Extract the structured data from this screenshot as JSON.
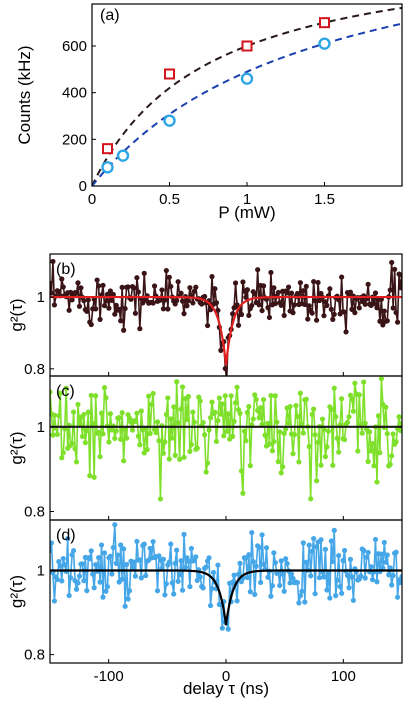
{
  "chart_data": [
    {
      "panel": "(a)",
      "type": "scatter",
      "xlabel": "P (mW)",
      "ylabel": "Counts (kHz)",
      "xlim": [
        0,
        2
      ],
      "ylim": [
        0,
        780
      ],
      "xticks": [
        "0",
        "0.5",
        "1",
        "1.5"
      ],
      "yticks": [
        "0",
        "200",
        "400",
        "600"
      ],
      "series": [
        {
          "color": "#d4141c",
          "marker": "square",
          "x": [
            0.1,
            0.5,
            1.0,
            1.5
          ],
          "y": [
            160,
            480,
            600,
            700
          ]
        },
        {
          "color": "#2ea6e6",
          "marker": "circle",
          "x": [
            0.1,
            0.2,
            0.5,
            1.0,
            1.5
          ],
          "y": [
            80,
            130,
            280,
            460,
            610
          ]
        }
      ],
      "fits": [
        {
          "color": "#2a1a1a",
          "style": "dashed",
          "Imax": 1050,
          "Psat": 0.75
        },
        {
          "color": "#1a3fae",
          "style": "dashed",
          "Imax": 1200,
          "Psat": 1.45
        }
      ]
    },
    {
      "panel": "(b)",
      "type": "line",
      "ylabel": "g²(τ)",
      "xlim": [
        -150,
        150
      ],
      "ylim": [
        0.78,
        1.12
      ],
      "yticks": [
        "0.8",
        "1"
      ],
      "data_color": "#3a1416",
      "noise": 0.035,
      "dip": {
        "depth": 0.19,
        "width": 6
      },
      "fit": {
        "color": "#e02020",
        "depth": 0.19,
        "width": 6
      }
    },
    {
      "panel": "(c)",
      "type": "line",
      "ylabel": "g²(τ)",
      "xlim": [
        -150,
        150
      ],
      "ylim": [
        0.78,
        1.12
      ],
      "yticks": [
        "0.8",
        "1"
      ],
      "data_color": "#7ee02a",
      "noise": 0.055,
      "dip": {
        "depth": 0.0,
        "width": 6
      },
      "fit": {
        "color": "#1a1a1a",
        "depth": 0.0,
        "width": 6
      }
    },
    {
      "panel": "(d)",
      "type": "line",
      "ylabel": "g²(τ)",
      "xlabel": "delay τ (ns)",
      "xlim": [
        -150,
        150
      ],
      "ylim": [
        0.78,
        1.12
      ],
      "yticks": [
        "0.8",
        "1"
      ],
      "xticks": [
        "-100",
        "0",
        "100"
      ],
      "data_color": "#45a6e8",
      "noise": 0.04,
      "dip": {
        "depth": 0.15,
        "width": 6
      },
      "fit": {
        "color": "#000000",
        "depth": 0.13,
        "width": 6
      }
    }
  ]
}
